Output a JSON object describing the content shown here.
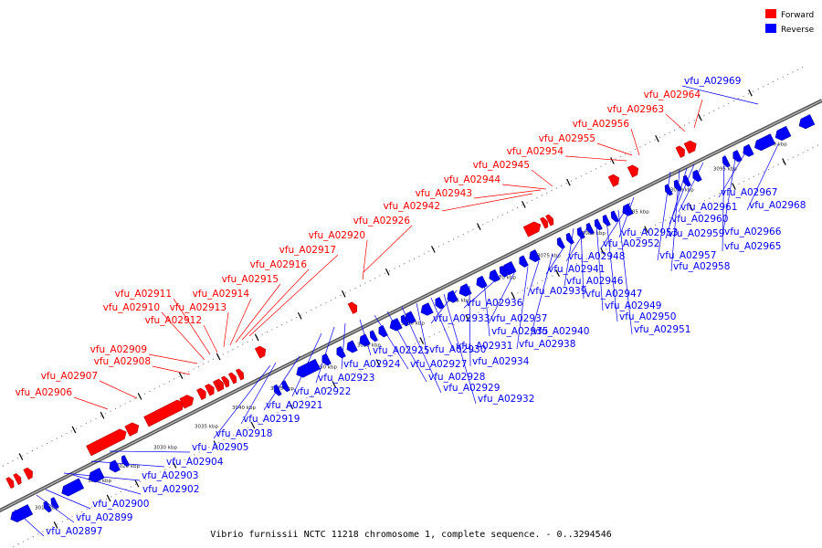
{
  "legend": {
    "forward_label": "Forward",
    "reverse_label": "Reverse",
    "forward_color": "#ff0000",
    "reverse_color": "#0000ff"
  },
  "caption": "Vibrio furnissii NCTC 11218 chromosome 1, complete sequence. - 0..3294546",
  "axis": {
    "unit": "kbp",
    "tick_labels": [
      "3015 kbp",
      "3020 kbp",
      "3025 kbp",
      "3030 kbp",
      "3035 kbp",
      "3040 kbp",
      "3045 kbp",
      "3050 kbp",
      "3055 kbp",
      "3060 kbp",
      "3065 kbp",
      "3070 kbp",
      "3075 kbp",
      "3080 kbp",
      "3085 kbp",
      "3090 kbp",
      "3095 kbp",
      "3100 kbp"
    ]
  },
  "forward_genes": [
    "vfu_A02906",
    "vfu_A02907",
    "vfu_A02908",
    "vfu_A02909",
    "vfu_A02910",
    "vfu_A02911",
    "vfu_A02912",
    "vfu_A02913",
    "vfu_A02914",
    "vfu_A02915",
    "vfu_A02916",
    "vfu_A02917",
    "vfu_A02920",
    "vfu_A02926",
    "vfu_A02942",
    "vfu_A02943",
    "vfu_A02944",
    "vfu_A02945",
    "vfu_A02954",
    "vfu_A02955",
    "vfu_A02956",
    "vfu_A02963",
    "vfu_A02964"
  ],
  "reverse_genes": [
    "vfu_A02897",
    "vfu_A02899",
    "vfu_A02900",
    "vfu_A02902",
    "vfu_A02903",
    "vfu_A02904",
    "vfu_A02905",
    "vfu_A02918",
    "vfu_A02919",
    "vfu_A02921",
    "vfu_A02922",
    "vfu_A02923",
    "vfu_A02924",
    "vfu_A02925",
    "vfu_A02927",
    "vfu_A02928",
    "vfu_A02929",
    "vfu_A02930",
    "vfu_A02931",
    "vfu_A02932",
    "vfu_A02933",
    "vfu_A02934",
    "vfu_A02935",
    "vfu_A02936",
    "vfu_A02937",
    "vfu_A02938",
    "vfu_A02939",
    "vfu_A02940",
    "vfu_A02941",
    "vfu_A02946",
    "vfu_A02947",
    "vfu_A02948",
    "vfu_A02949",
    "vfu_A02950",
    "vfu_A02951",
    "vfu_A02952",
    "vfu_A02953",
    "vfu_A02957",
    "vfu_A02958",
    "vfu_A02959",
    "vfu_A02960",
    "vfu_A02961",
    "vfu_A02965",
    "vfu_A02966",
    "vfu_A02967",
    "vfu_A02968",
    "vfu_A02969"
  ]
}
